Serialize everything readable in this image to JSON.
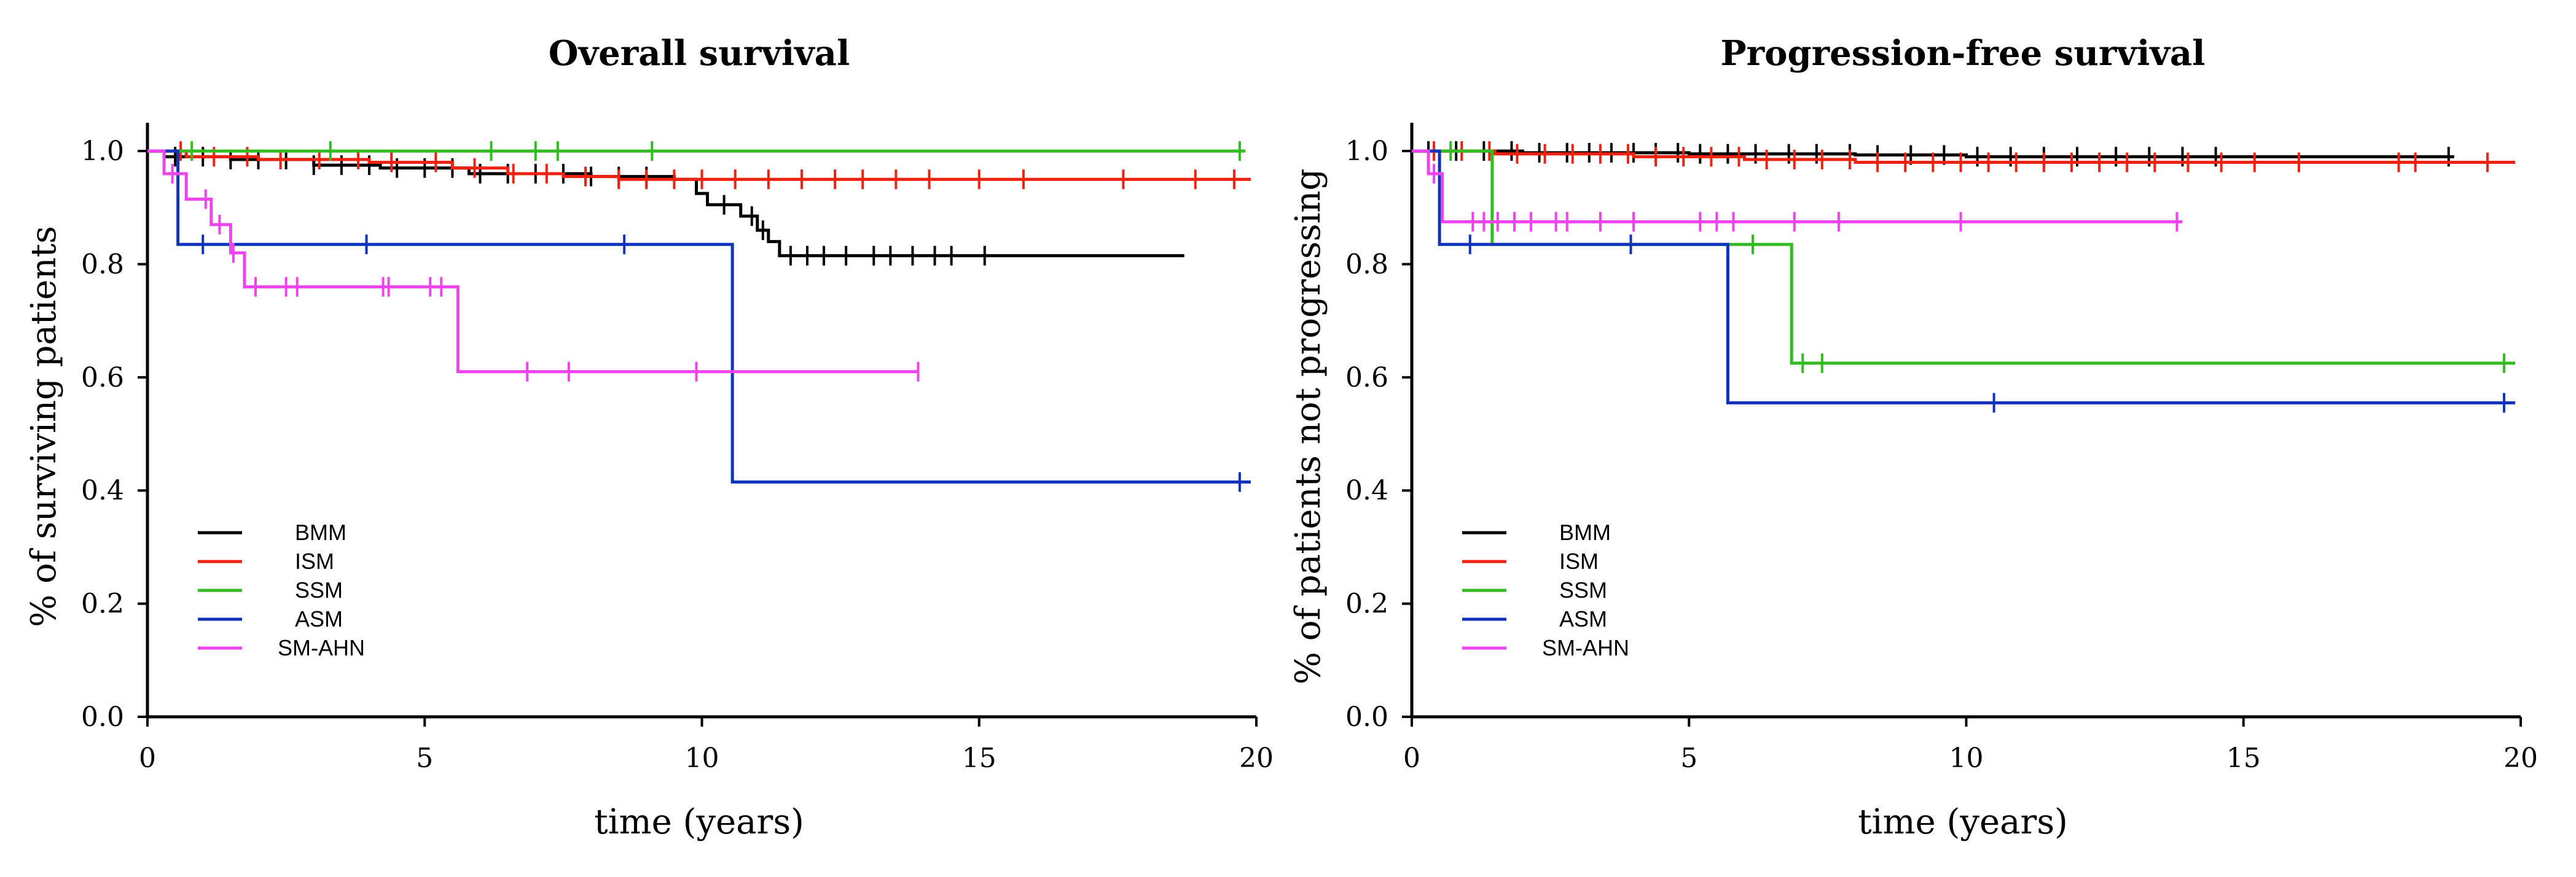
{
  "colors": {
    "BMM": "#000000",
    "ISM": "#ee2211",
    "SSM": "#33bb22",
    "ASM": "#1133bb",
    "SM-AHN": "#ee44ee"
  },
  "chart_data": [
    {
      "type": "line",
      "subtype": "kaplan-meier",
      "title": "Overall survival",
      "xlabel": "time (years)",
      "ylabel": "% of surviving patients",
      "xlim": [
        0,
        20
      ],
      "ylim": [
        0,
        1.05
      ],
      "xticks": [
        0,
        5,
        10,
        15,
        20
      ],
      "yticks": [
        0.0,
        0.2,
        0.4,
        0.6,
        0.8,
        1.0
      ],
      "ytick_labels": [
        "0.0",
        "0.2",
        "0.4",
        "0.6",
        "0.8",
        "1.0"
      ],
      "legend_position": "bottom-left",
      "series": [
        {
          "name": "BMM",
          "steps": [
            [
              0,
              1.0
            ],
            [
              0.3,
              0.99
            ],
            [
              1.5,
              0.985
            ],
            [
              3.0,
              0.975
            ],
            [
              4.2,
              0.97
            ],
            [
              5.8,
              0.96
            ],
            [
              8.0,
              0.955
            ],
            [
              9.5,
              0.95
            ],
            [
              9.9,
              0.925
            ],
            [
              10.1,
              0.905
            ],
            [
              10.7,
              0.885
            ],
            [
              11.0,
              0.86
            ],
            [
              11.2,
              0.84
            ],
            [
              11.4,
              0.815
            ],
            [
              18.7,
              0.815
            ]
          ],
          "censored": [
            0.5,
            1.0,
            1.5,
            2.0,
            2.5,
            3.0,
            3.5,
            4.0,
            4.5,
            5.0,
            5.5,
            6.0,
            6.5,
            7.0,
            7.5,
            8.0,
            8.5,
            9.0,
            10.4,
            10.9,
            11.1,
            11.6,
            11.9,
            12.2,
            12.6,
            13.1,
            13.4,
            13.8,
            14.2,
            14.5,
            15.1
          ]
        },
        {
          "name": "ISM",
          "steps": [
            [
              0,
              1.0
            ],
            [
              0.7,
              0.99
            ],
            [
              2.0,
              0.985
            ],
            [
              4.0,
              0.98
            ],
            [
              5.5,
              0.97
            ],
            [
              6.5,
              0.96
            ],
            [
              7.5,
              0.955
            ],
            [
              8.5,
              0.95
            ],
            [
              19.9,
              0.95
            ]
          ],
          "censored": [
            0.6,
            1.2,
            1.8,
            2.4,
            3.1,
            3.8,
            4.4,
            5.2,
            5.9,
            6.6,
            7.2,
            7.9,
            8.5,
            9.0,
            9.5,
            10.0,
            10.6,
            11.2,
            11.8,
            12.4,
            12.9,
            13.5,
            14.1,
            15.0,
            15.8,
            17.6,
            18.9,
            19.6
          ]
        },
        {
          "name": "SSM",
          "steps": [
            [
              0,
              1.0
            ],
            [
              19.8,
              1.0
            ]
          ],
          "censored": [
            0.8,
            3.3,
            6.2,
            7.0,
            7.4,
            9.1,
            19.7
          ]
        },
        {
          "name": "ASM",
          "steps": [
            [
              0,
              1.0
            ],
            [
              0.55,
              0.835
            ],
            [
              10.55,
              0.415
            ],
            [
              19.9,
              0.415
            ]
          ],
          "censored": [
            1.0,
            3.95,
            8.6,
            19.7
          ]
        },
        {
          "name": "SM-AHN",
          "steps": [
            [
              0,
              1.0
            ],
            [
              0.3,
              0.96
            ],
            [
              0.7,
              0.915
            ],
            [
              1.15,
              0.87
            ],
            [
              1.5,
              0.82
            ],
            [
              1.75,
              0.76
            ],
            [
              5.6,
              0.61
            ],
            [
              13.9,
              0.61
            ]
          ],
          "censored": [
            0.45,
            1.05,
            1.3,
            1.55,
            1.95,
            2.5,
            2.7,
            4.25,
            4.35,
            5.1,
            5.3,
            6.85,
            7.6,
            9.9,
            13.9
          ]
        }
      ]
    },
    {
      "type": "line",
      "subtype": "kaplan-meier",
      "title": "Progression-free survival",
      "xlabel": "time (years)",
      "ylabel": "% of patients not progressing",
      "xlim": [
        0,
        20
      ],
      "ylim": [
        0,
        1.05
      ],
      "xticks": [
        0,
        5,
        10,
        15,
        20
      ],
      "yticks": [
        0.0,
        0.2,
        0.4,
        0.6,
        0.8,
        1.0
      ],
      "ytick_labels": [
        "0.0",
        "0.2",
        "0.4",
        "0.6",
        "0.8",
        "1.0"
      ],
      "legend_position": "bottom-left",
      "series": [
        {
          "name": "BMM",
          "steps": [
            [
              0,
              1.0
            ],
            [
              2.0,
              0.997
            ],
            [
              5.0,
              0.995
            ],
            [
              8.0,
              0.993
            ],
            [
              10.0,
              0.99
            ],
            [
              18.8,
              0.99
            ]
          ],
          "censored": [
            0.3,
            0.8,
            1.3,
            1.8,
            2.3,
            2.8,
            3.2,
            3.6,
            4.0,
            4.4,
            4.8,
            5.2,
            5.7,
            6.2,
            6.8,
            7.3,
            7.9,
            8.4,
            9.0,
            9.6,
            10.2,
            10.8,
            11.4,
            12.0,
            12.7,
            13.3,
            13.9,
            14.5,
            18.7
          ]
        },
        {
          "name": "ISM",
          "steps": [
            [
              0,
              1.0
            ],
            [
              1.5,
              0.995
            ],
            [
              4.0,
              0.99
            ],
            [
              6.0,
              0.985
            ],
            [
              8.0,
              0.98
            ],
            [
              19.9,
              0.98
            ]
          ],
          "censored": [
            0.4,
            0.9,
            1.4,
            1.9,
            2.4,
            2.9,
            3.4,
            3.9,
            4.4,
            4.9,
            5.4,
            5.9,
            6.4,
            6.9,
            7.4,
            7.9,
            8.4,
            8.9,
            9.4,
            9.9,
            10.4,
            10.9,
            11.4,
            11.9,
            12.4,
            12.9,
            13.4,
            14.0,
            14.6,
            15.2,
            16.0,
            17.8,
            18.1,
            19.4
          ]
        },
        {
          "name": "SSM",
          "steps": [
            [
              0,
              1.0
            ],
            [
              1.45,
              0.835
            ],
            [
              6.85,
              0.625
            ],
            [
              19.9,
              0.625
            ]
          ],
          "censored": [
            0.7,
            6.15,
            7.05,
            7.4,
            19.7
          ]
        },
        {
          "name": "ASM",
          "steps": [
            [
              0,
              1.0
            ],
            [
              0.5,
              0.835
            ],
            [
              5.7,
              0.555
            ],
            [
              19.9,
              0.555
            ]
          ],
          "censored": [
            1.05,
            3.95,
            10.5,
            19.7
          ]
        },
        {
          "name": "SM-AHN",
          "steps": [
            [
              0,
              1.0
            ],
            [
              0.3,
              0.96
            ],
            [
              0.55,
              0.875
            ],
            [
              13.9,
              0.875
            ]
          ],
          "censored": [
            0.4,
            1.1,
            1.3,
            1.55,
            1.85,
            2.15,
            2.6,
            2.8,
            3.4,
            4.0,
            5.2,
            5.5,
            5.8,
            6.9,
            7.7,
            9.9,
            13.8
          ]
        }
      ]
    }
  ]
}
